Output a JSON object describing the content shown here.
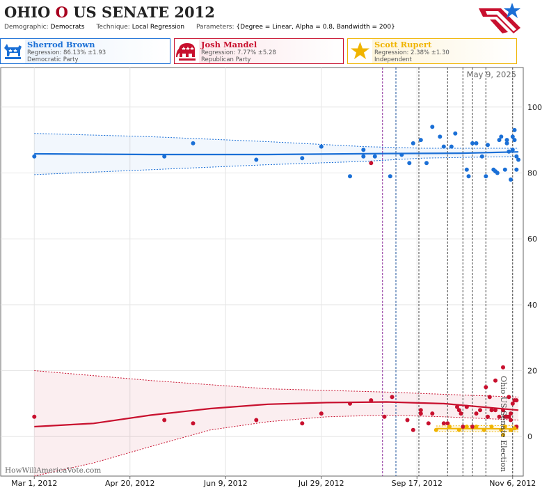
{
  "header": {
    "state": "OHIO",
    "separator": "O",
    "race": "US SENATE 2012",
    "demographic_label": "Demographic:",
    "demographic_value": "Democrats",
    "technique_label": "Technique:",
    "technique_value": "Local Regression",
    "parameters_label": "Parameters:",
    "parameters_value": "{Degree = Linear, Alpha = 0.8, Bandwidth = 200}"
  },
  "candidates": [
    {
      "name": "Sherrod Brown",
      "regression": "Regression: 86.13% ±1.93",
      "party": "Democratic Party",
      "color": "#1a6fd6",
      "icon": "donkey-icon"
    },
    {
      "name": "Josh Mandel",
      "regression": "Regression: 7.77% ±5.28",
      "party": "Republican Party",
      "color": "#c8102e",
      "icon": "elephant-icon"
    },
    {
      "name": "Scott Rupert",
      "regression": "Regression: 2.38% ±1.30",
      "party": "Independent",
      "color": "#f0b400",
      "icon": "star-icon"
    }
  ],
  "watermark": "HowWillAmericaVote.com",
  "chart_data": {
    "type": "scatter",
    "date_label": "May 9, 2025",
    "event_label": "Ohio US Senate Election",
    "x_tick_labels": [
      "Mar 1, 2012",
      "Apr 20, 2012",
      "Jun 9, 2012",
      "Jul 29, 2012",
      "Sep 17, 2012",
      "Nov 6, 2012"
    ],
    "x_tick_dates": [
      "2012-03-01",
      "2012-04-20",
      "2012-06-09",
      "2012-07-29",
      "2012-09-17",
      "2012-11-06"
    ],
    "xlim": [
      "2012-02-23",
      "2012-11-09"
    ],
    "ylim": [
      -12,
      112
    ],
    "y_ticks": [
      0,
      20,
      40,
      60,
      80,
      100
    ],
    "grid": true,
    "vlines": [
      {
        "date": "2012-08-30",
        "color": "#8a2a9a"
      },
      {
        "date": "2012-09-06",
        "color": "#1a4f9a"
      },
      {
        "date": "2012-09-18",
        "color": "#444444"
      },
      {
        "date": "2012-10-03",
        "color": "#444444"
      },
      {
        "date": "2012-10-11",
        "color": "#444444"
      },
      {
        "date": "2012-10-16",
        "color": "#444444"
      },
      {
        "date": "2012-10-23",
        "color": "#444444"
      },
      {
        "date": "2012-11-06",
        "color": "#444444"
      }
    ],
    "series": [
      {
        "name": "Sherrod Brown",
        "color": "#1a6fd6",
        "points": [
          [
            "2012-03-01",
            85
          ],
          [
            "2012-05-08",
            85
          ],
          [
            "2012-05-23",
            89
          ],
          [
            "2012-06-25",
            84
          ],
          [
            "2012-07-19",
            84.5
          ],
          [
            "2012-07-29",
            88
          ],
          [
            "2012-08-13",
            79
          ],
          [
            "2012-08-20",
            87
          ],
          [
            "2012-08-20",
            85
          ],
          [
            "2012-08-26",
            85
          ],
          [
            "2012-09-03",
            79
          ],
          [
            "2012-09-09",
            85.5
          ],
          [
            "2012-09-13",
            83
          ],
          [
            "2012-09-15",
            89
          ],
          [
            "2012-09-19",
            90
          ],
          [
            "2012-09-22",
            83
          ],
          [
            "2012-09-25",
            94
          ],
          [
            "2012-09-29",
            91
          ],
          [
            "2012-10-01",
            88
          ],
          [
            "2012-10-05",
            88
          ],
          [
            "2012-10-07",
            92
          ],
          [
            "2012-10-13",
            81
          ],
          [
            "2012-10-14",
            79
          ],
          [
            "2012-10-16",
            89
          ],
          [
            "2012-10-18",
            89
          ],
          [
            "2012-10-21",
            85
          ],
          [
            "2012-10-23",
            79
          ],
          [
            "2012-10-24",
            88.5
          ],
          [
            "2012-10-27",
            81
          ],
          [
            "2012-10-28",
            80.5
          ],
          [
            "2012-10-29",
            80
          ],
          [
            "2012-10-30",
            90
          ],
          [
            "2012-10-31",
            91
          ],
          [
            "2012-11-02",
            81
          ],
          [
            "2012-11-03",
            89
          ],
          [
            "2012-11-03",
            90
          ],
          [
            "2012-11-04",
            86.5
          ],
          [
            "2012-11-05",
            78
          ],
          [
            "2012-11-06",
            91
          ],
          [
            "2012-11-06",
            87
          ],
          [
            "2012-11-07",
            93
          ],
          [
            "2012-11-07",
            90
          ],
          [
            "2012-11-08",
            85
          ],
          [
            "2012-11-08",
            81
          ],
          [
            "2012-11-09",
            84
          ]
        ],
        "fit": [
          [
            "2012-03-01",
            85.8
          ],
          [
            "2012-05-01",
            85.6
          ],
          [
            "2012-07-01",
            85.6
          ],
          [
            "2012-09-01",
            85.9
          ],
          [
            "2012-10-10",
            86.0
          ],
          [
            "2012-11-09",
            86.4
          ]
        ],
        "band_upper": [
          [
            "2012-03-01",
            92
          ],
          [
            "2012-05-01",
            91
          ],
          [
            "2012-07-01",
            89.5
          ],
          [
            "2012-08-20",
            88
          ],
          [
            "2012-09-20",
            87.5
          ],
          [
            "2012-11-09",
            87.5
          ]
        ],
        "band_lower": [
          [
            "2012-03-01",
            79.5
          ],
          [
            "2012-05-01",
            81
          ],
          [
            "2012-07-01",
            82.5
          ],
          [
            "2012-08-20",
            83.5
          ],
          [
            "2012-09-20",
            84.5
          ],
          [
            "2012-11-09",
            85
          ]
        ]
      },
      {
        "name": "Josh Mandel",
        "color": "#c8102e",
        "points": [
          [
            "2012-03-01",
            6
          ],
          [
            "2012-05-08",
            5
          ],
          [
            "2012-05-23",
            4
          ],
          [
            "2012-06-25",
            5
          ],
          [
            "2012-07-19",
            4
          ],
          [
            "2012-07-29",
            7
          ],
          [
            "2012-08-13",
            10
          ],
          [
            "2012-08-24",
            11
          ],
          [
            "2012-08-24",
            83
          ],
          [
            "2012-08-31",
            6
          ],
          [
            "2012-09-04",
            12
          ],
          [
            "2012-09-12",
            5
          ],
          [
            "2012-09-15",
            2
          ],
          [
            "2012-09-19",
            8
          ],
          [
            "2012-09-19",
            7
          ],
          [
            "2012-09-23",
            4
          ],
          [
            "2012-09-25",
            7
          ],
          [
            "2012-10-01",
            4
          ],
          [
            "2012-10-03",
            4
          ],
          [
            "2012-10-08",
            9
          ],
          [
            "2012-10-09",
            8
          ],
          [
            "2012-10-10",
            7
          ],
          [
            "2012-10-11",
            3
          ],
          [
            "2012-10-13",
            9
          ],
          [
            "2012-10-16",
            3
          ],
          [
            "2012-10-18",
            7
          ],
          [
            "2012-10-20",
            8
          ],
          [
            "2012-10-23",
            15
          ],
          [
            "2012-10-24",
            6
          ],
          [
            "2012-10-25",
            12
          ],
          [
            "2012-10-26",
            8
          ],
          [
            "2012-10-28",
            17
          ],
          [
            "2012-10-28",
            8
          ],
          [
            "2012-10-30",
            6
          ],
          [
            "2012-11-01",
            21
          ],
          [
            "2012-11-01",
            8
          ],
          [
            "2012-11-02",
            6
          ],
          [
            "2012-11-03",
            6
          ],
          [
            "2012-11-04",
            12
          ],
          [
            "2012-11-04",
            6
          ],
          [
            "2012-11-05",
            5
          ],
          [
            "2012-11-05",
            7
          ],
          [
            "2012-11-06",
            10
          ],
          [
            "2012-11-07",
            11
          ],
          [
            "2012-11-08",
            11
          ],
          [
            "2012-11-08",
            3
          ]
        ],
        "fit": [
          [
            "2012-03-01",
            3
          ],
          [
            "2012-04-01",
            4
          ],
          [
            "2012-05-01",
            6.5
          ],
          [
            "2012-06-01",
            8.5
          ],
          [
            "2012-07-01",
            9.8
          ],
          [
            "2012-08-01",
            10.3
          ],
          [
            "2012-09-01",
            10.5
          ],
          [
            "2012-10-01",
            10
          ],
          [
            "2012-11-09",
            8
          ]
        ],
        "band_upper": [
          [
            "2012-03-01",
            20
          ],
          [
            "2012-05-01",
            17
          ],
          [
            "2012-07-01",
            14.5
          ],
          [
            "2012-09-01",
            13.5
          ],
          [
            "2012-10-15",
            12.5
          ],
          [
            "2012-11-09",
            12
          ]
        ],
        "band_lower": [
          [
            "2012-03-01",
            -12
          ],
          [
            "2012-04-01",
            -8
          ],
          [
            "2012-05-01",
            -3
          ],
          [
            "2012-06-01",
            2
          ],
          [
            "2012-07-01",
            4.5
          ],
          [
            "2012-08-01",
            6
          ],
          [
            "2012-09-01",
            6.5
          ],
          [
            "2012-10-01",
            6
          ],
          [
            "2012-11-09",
            5
          ]
        ]
      },
      {
        "name": "Scott Rupert",
        "color": "#f0b400",
        "points": [
          [
            "2012-09-27",
            2
          ],
          [
            "2012-10-04",
            3
          ],
          [
            "2012-10-09",
            2
          ],
          [
            "2012-10-13",
            3
          ],
          [
            "2012-10-18",
            3
          ],
          [
            "2012-10-22",
            2
          ],
          [
            "2012-10-26",
            3
          ],
          [
            "2012-10-31",
            2
          ],
          [
            "2012-11-01",
            0.5
          ],
          [
            "2012-11-02",
            3
          ],
          [
            "2012-11-05",
            2
          ],
          [
            "2012-11-07",
            2.5
          ]
        ],
        "fit": [
          [
            "2012-09-27",
            2.4
          ],
          [
            "2012-10-20",
            2.4
          ],
          [
            "2012-11-09",
            2.3
          ]
        ],
        "band_upper": [
          [
            "2012-09-27",
            3.2
          ],
          [
            "2012-11-09",
            3.4
          ]
        ],
        "band_lower": [
          [
            "2012-09-27",
            1.6
          ],
          [
            "2012-11-09",
            1.4
          ]
        ]
      }
    ]
  }
}
